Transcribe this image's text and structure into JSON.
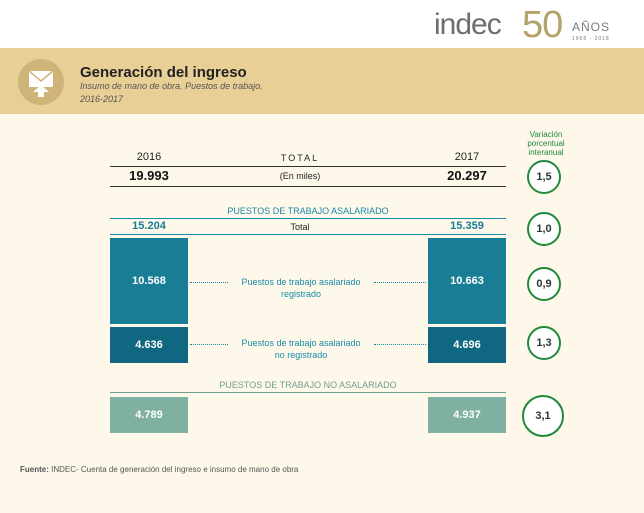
{
  "brand": {
    "name": "indec",
    "anniversary": "50",
    "years_label": "AÑOS",
    "year_range": "1968 - 2018"
  },
  "header": {
    "title": "Generación del ingreso",
    "subtitle": "Insumo de mano de obra. Puestos de trabajo.",
    "period": "2016-2017",
    "icon": "document-arrow-icon"
  },
  "variation_header": [
    "Variación",
    "porcentual",
    "interanual"
  ],
  "totals": {
    "year_2016": "2016",
    "year_2017": "2017",
    "label": "TOTAL",
    "unit": "(En miles)",
    "value_2016": "19.993",
    "value_2017": "20.297",
    "variation": "1,5"
  },
  "asalariado": {
    "section_title": "PUESTOS DE TRABAJO ASALARIADO",
    "total": {
      "value_2016": "15.204",
      "label": "Total",
      "value_2017": "15.359",
      "variation": "1,0"
    },
    "registrado": {
      "value_2016": "10.568",
      "label_line1": "Puestos de trabajo asalariado",
      "label_line2": "registrado",
      "value_2017": "10.663",
      "variation": "0,9"
    },
    "no_registrado": {
      "value_2016": "4.636",
      "label_line1": "Puestos de trabajo asalariado",
      "label_line2": "no registrado",
      "value_2017": "4.696",
      "variation": "1,3"
    }
  },
  "no_asalariado": {
    "section_title": "PUESTOS DE TRABAJO NO ASALARIADO",
    "value_2016": "4.789",
    "value_2017": "4.937",
    "variation": "3,1"
  },
  "source": {
    "label": "Fuente:",
    "text": "INDEC- Cuenta de generación del ingreso e insumo de mano de obra"
  },
  "colors": {
    "blue": "#1a7d96",
    "dark_blue": "#0f6781",
    "grey_green": "#7fb0a1",
    "circle_green": "#1f8a3a",
    "band": "#e8cf96",
    "background": "#fdf8ea"
  }
}
